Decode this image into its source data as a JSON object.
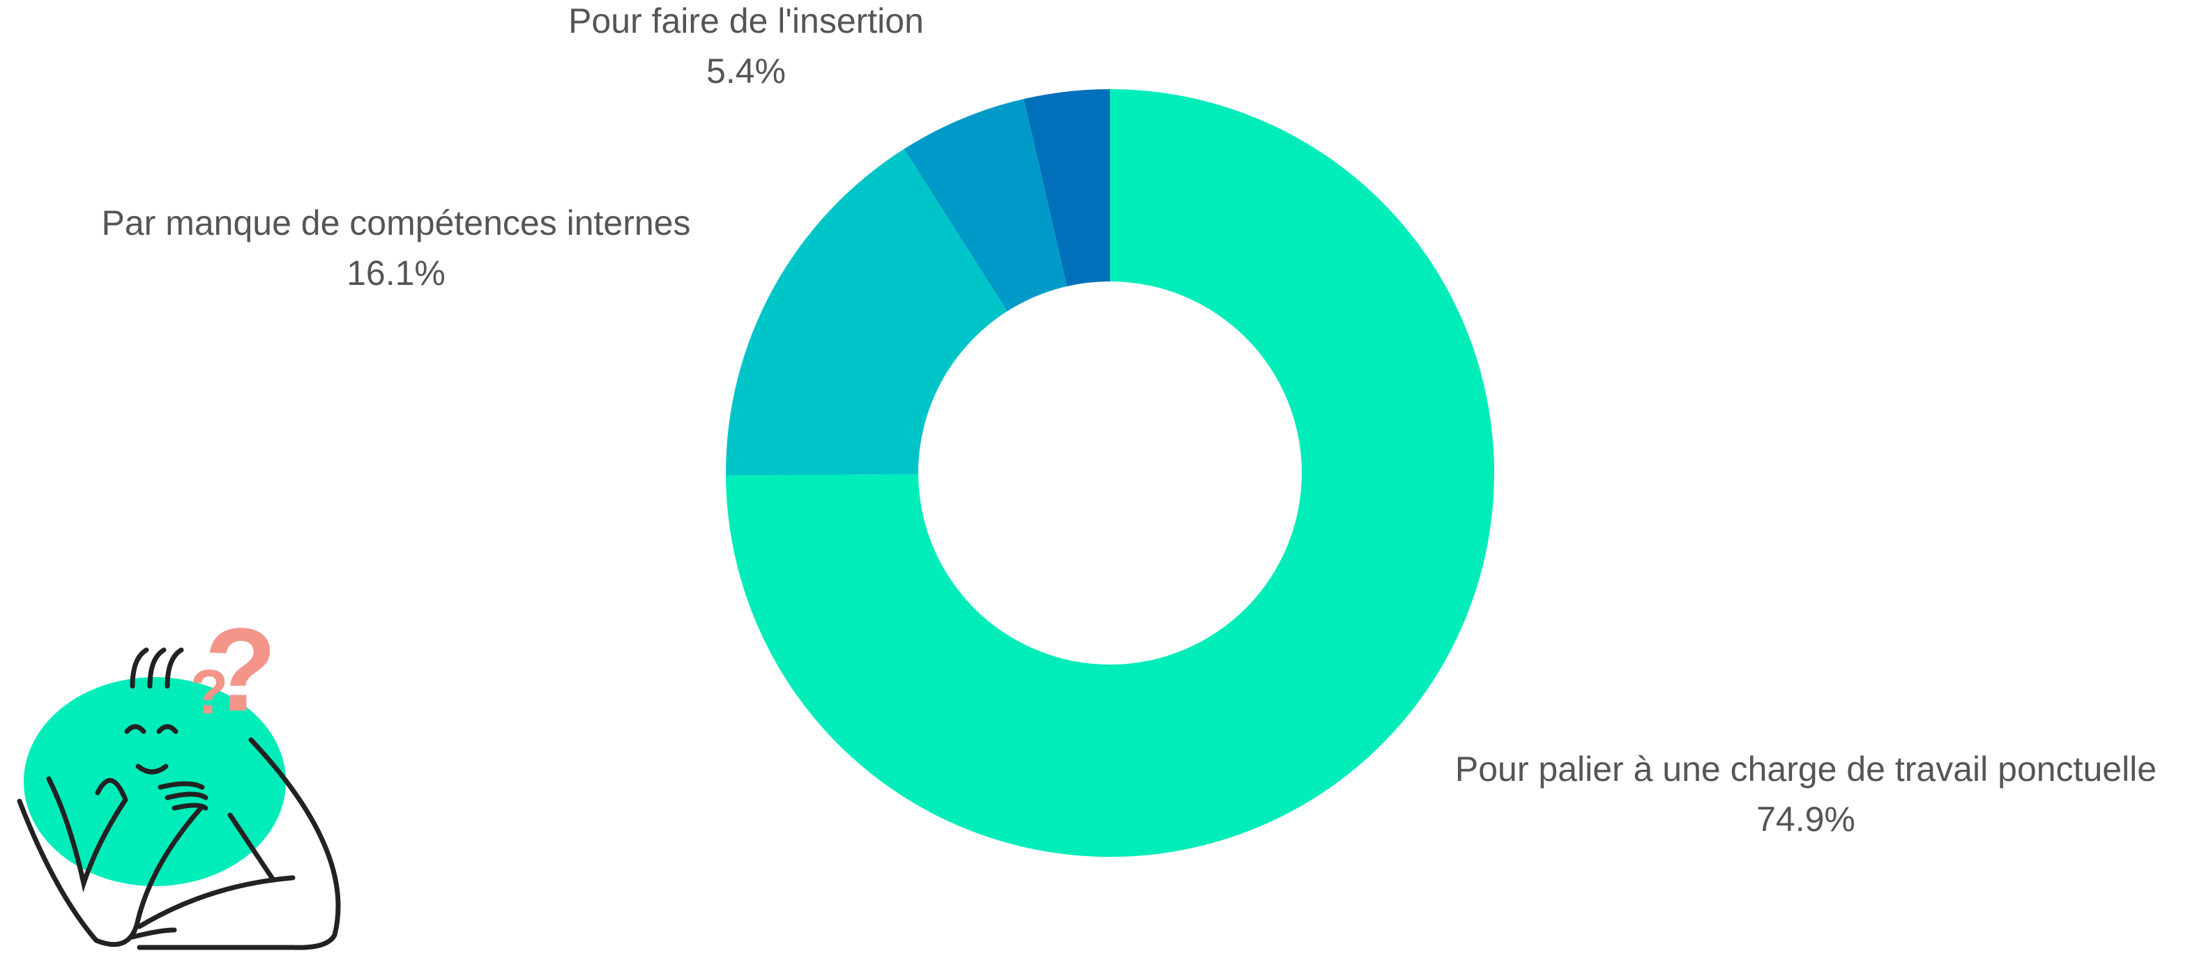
{
  "chart_data": {
    "type": "donut",
    "categories": [
      "Pour palier à une charge de travail ponctuelle",
      "Par manque de compétences internes",
      "Pour faire de l'insertion",
      null
    ],
    "values": [
      74.9,
      16.1,
      5.4,
      3.6
    ],
    "value_labels": [
      "74.9%",
      "16.1%",
      "5.4%",
      null
    ],
    "colors": [
      "#00edba",
      "#00c5c8",
      "#009ac9",
      "#0070ba"
    ]
  }
}
